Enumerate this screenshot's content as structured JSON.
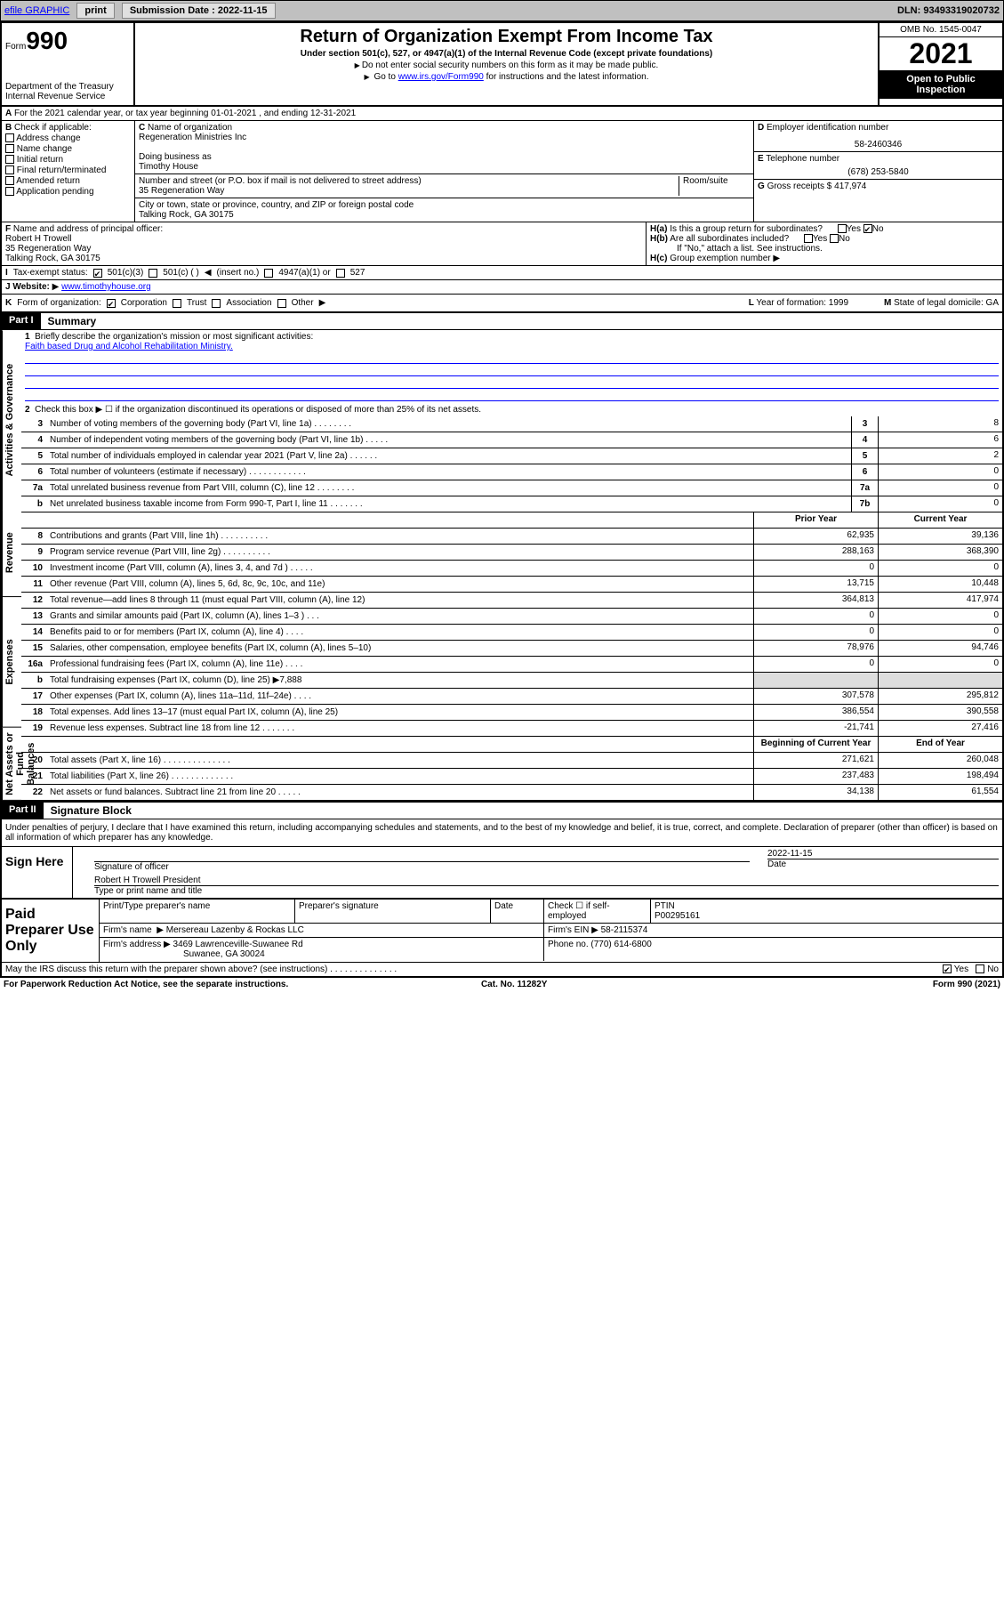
{
  "topbar": {
    "efile": "efile GRAPHIC",
    "print": "print",
    "sub_label": "Submission Date : 2022-11-15",
    "dln": "DLN: 93493319020732"
  },
  "header": {
    "form_label": "Form",
    "form_num": "990",
    "dept": "Department of the Treasury",
    "irs": "Internal Revenue Service",
    "title": "Return of Organization Exempt From Income Tax",
    "sub": "Under section 501(c), 527, or 4947(a)(1) of the Internal Revenue Code (except private foundations)",
    "note1": "Do not enter social security numbers on this form as it may be made public.",
    "note2_pre": "Go to ",
    "note2_link": "www.irs.gov/Form990",
    "note2_post": " for instructions and the latest information.",
    "omb": "OMB No. 1545-0047",
    "year": "2021",
    "inspection": "Open to Public Inspection"
  },
  "row_a": {
    "text": "For the 2021 calendar year, or tax year beginning 01-01-2021   , and ending 12-31-2021"
  },
  "col_b": {
    "label": "Check if applicable:",
    "items": [
      "Address change",
      "Name change",
      "Initial return",
      "Final return/terminated",
      "Amended return",
      "Application pending"
    ]
  },
  "col_c": {
    "name_label": "Name of organization",
    "name": "Regeneration Ministries Inc",
    "dba_label": "Doing business as",
    "dba": "Timothy House",
    "street_label": "Number and street (or P.O. box if mail is not delivered to street address)",
    "room_label": "Room/suite",
    "street": "35 Regeneration Way",
    "city_label": "City or town, state or province, country, and ZIP or foreign postal code",
    "city": "Talking Rock, GA  30175"
  },
  "col_d": {
    "ein_label": "Employer identification number",
    "ein": "58-2460346",
    "phone_label": "Telephone number",
    "phone": "(678) 253-5840",
    "gross_label": "Gross receipts $",
    "gross": "417,974"
  },
  "col_f": {
    "label": "Name and address of principal officer:",
    "name": "Robert H Trowell",
    "street": "35 Regeneration Way",
    "city": "Talking Rock, GA  30175"
  },
  "col_h": {
    "ha": "Is this a group return for subordinates?",
    "ha_yes": "Yes",
    "ha_no": "No",
    "hb": "Are all subordinates included?",
    "hb_note": "If \"No,\" attach a list. See instructions.",
    "hc": "Group exemption number"
  },
  "row_i": {
    "label": "Tax-exempt status:",
    "o1": "501(c)(3)",
    "o2": "501(c) (  )",
    "o2b": "(insert no.)",
    "o3": "4947(a)(1) or",
    "o4": "527"
  },
  "row_j": {
    "label": "Website:",
    "url": "www.timothyhouse.org"
  },
  "row_k": {
    "label": "Form of organization:",
    "o1": "Corporation",
    "o2": "Trust",
    "o3": "Association",
    "o4": "Other",
    "l_label": "Year of formation:",
    "l_val": "1999",
    "m_label": "State of legal domicile:",
    "m_val": "GA"
  },
  "part1": {
    "header": "Part I",
    "title": "Summary",
    "q1": "Briefly describe the organization's mission or most significant activities:",
    "mission": "Faith based Drug and Alcohol Rehabilitation Ministry.",
    "q2": "Check this box ▶ ☐  if the organization discontinued its operations or disposed of more than 25% of its net assets.",
    "labels": {
      "gov": "Activities & Governance",
      "rev": "Revenue",
      "exp": "Expenses",
      "net": "Net Assets or Fund Balances"
    },
    "hdr_prior": "Prior Year",
    "hdr_curr": "Current Year",
    "hdr_beg": "Beginning of Current Year",
    "hdr_end": "End of Year",
    "lines_gov": [
      {
        "n": "3",
        "t": "Number of voting members of the governing body (Part VI, line 1a)  .   .   .   .   .   .   .   .",
        "bn": "3",
        "v": "8"
      },
      {
        "n": "4",
        "t": "Number of independent voting members of the governing body (Part VI, line 1b)  .   .   .   .   .",
        "bn": "4",
        "v": "6"
      },
      {
        "n": "5",
        "t": "Total number of individuals employed in calendar year 2021 (Part V, line 2a)  .   .   .   .   .   .",
        "bn": "5",
        "v": "2"
      },
      {
        "n": "6",
        "t": "Total number of volunteers (estimate if necessary)  .   .   .   .   .   .   .   .   .   .   .   .",
        "bn": "6",
        "v": "0"
      },
      {
        "n": "7a",
        "t": "Total unrelated business revenue from Part VIII, column (C), line 12  .   .   .   .   .   .   .   .",
        "bn": "7a",
        "v": "0"
      },
      {
        "n": "b",
        "t": "Net unrelated business taxable income from Form 990-T, Part I, line 11  .   .   .   .   .   .   .",
        "bn": "7b",
        "v": "0"
      }
    ],
    "lines_rev": [
      {
        "n": "8",
        "t": "Contributions and grants (Part VIII, line 1h)  .   .   .   .   .   .   .   .   .   .",
        "p": "62,935",
        "c": "39,136"
      },
      {
        "n": "9",
        "t": "Program service revenue (Part VIII, line 2g)  .   .   .   .   .   .   .   .   .   .",
        "p": "288,163",
        "c": "368,390"
      },
      {
        "n": "10",
        "t": "Investment income (Part VIII, column (A), lines 3, 4, and 7d )  .   .   .   .   .",
        "p": "0",
        "c": "0"
      },
      {
        "n": "11",
        "t": "Other revenue (Part VIII, column (A), lines 5, 6d, 8c, 9c, 10c, and 11e)",
        "p": "13,715",
        "c": "10,448"
      },
      {
        "n": "12",
        "t": "Total revenue—add lines 8 through 11 (must equal Part VIII, column (A), line 12)",
        "p": "364,813",
        "c": "417,974"
      }
    ],
    "lines_exp": [
      {
        "n": "13",
        "t": "Grants and similar amounts paid (Part IX, column (A), lines 1–3 )  .   .   .",
        "p": "0",
        "c": "0"
      },
      {
        "n": "14",
        "t": "Benefits paid to or for members (Part IX, column (A), line 4)  .   .   .   .",
        "p": "0",
        "c": "0"
      },
      {
        "n": "15",
        "t": "Salaries, other compensation, employee benefits (Part IX, column (A), lines 5–10)",
        "p": "78,976",
        "c": "94,746"
      },
      {
        "n": "16a",
        "t": "Professional fundraising fees (Part IX, column (A), line 11e)  .   .   .   .",
        "p": "0",
        "c": "0"
      },
      {
        "n": "b",
        "t": "Total fundraising expenses (Part IX, column (D), line 25) ▶7,888",
        "p": "",
        "c": "",
        "blank": true
      },
      {
        "n": "17",
        "t": "Other expenses (Part IX, column (A), lines 11a–11d, 11f–24e)  .   .   .   .",
        "p": "307,578",
        "c": "295,812"
      },
      {
        "n": "18",
        "t": "Total expenses. Add lines 13–17 (must equal Part IX, column (A), line 25)",
        "p": "386,554",
        "c": "390,558"
      },
      {
        "n": "19",
        "t": "Revenue less expenses. Subtract line 18 from line 12  .   .   .   .   .   .   .",
        "p": "-21,741",
        "c": "27,416"
      }
    ],
    "lines_net": [
      {
        "n": "20",
        "t": "Total assets (Part X, line 16)  .   .   .   .   .   .   .   .   .   .   .   .   .   .",
        "p": "271,621",
        "c": "260,048"
      },
      {
        "n": "21",
        "t": "Total liabilities (Part X, line 26)  .   .   .   .   .   .   .   .   .   .   .   .   .",
        "p": "237,483",
        "c": "198,494"
      },
      {
        "n": "22",
        "t": "Net assets or fund balances. Subtract line 21 from line 20  .   .   .   .   .",
        "p": "34,138",
        "c": "61,554"
      }
    ]
  },
  "part2": {
    "header": "Part II",
    "title": "Signature Block",
    "text": "Under penalties of perjury, I declare that I have examined this return, including accompanying schedules and statements, and to the best of my knowledge and belief, it is true, correct, and complete. Declaration of preparer (other than officer) is based on all information of which preparer has any knowledge.",
    "sign_here": "Sign Here",
    "sig_officer": "Signature of officer",
    "sig_date": "2022-11-15",
    "date_label": "Date",
    "officer_name": "Robert H Trowell  President",
    "officer_label": "Type or print name and title",
    "paid_prep": "Paid Preparer Use Only",
    "prep_name_label": "Print/Type preparer's name",
    "prep_sig_label": "Preparer's signature",
    "prep_date_label": "Date",
    "check_label": "Check ☐ if self-employed",
    "ptin_label": "PTIN",
    "ptin": "P00295161",
    "firm_name_label": "Firm's name",
    "firm_name": "Mersereau Lazenby & Rockas LLC",
    "firm_ein_label": "Firm's EIN",
    "firm_ein": "58-2115374",
    "firm_addr_label": "Firm's address",
    "firm_addr1": "3469 Lawrenceville-Suwanee Rd",
    "firm_addr2": "Suwanee, GA  30024",
    "phone_label": "Phone no.",
    "phone": "(770) 614-6800",
    "discuss": "May the IRS discuss this return with the preparer shown above? (see instructions)  .   .   .   .   .   .   .   .   .   .   .   .   .   .",
    "yes": "Yes",
    "no": "No"
  },
  "footer": {
    "left": "For Paperwork Reduction Act Notice, see the separate instructions.",
    "mid": "Cat. No. 11282Y",
    "right": "Form 990 (2021)"
  }
}
